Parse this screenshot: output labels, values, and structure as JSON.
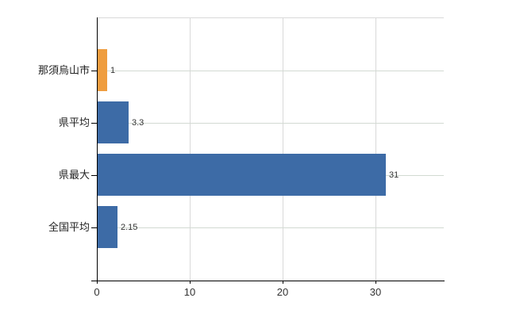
{
  "chart_data": {
    "type": "bar",
    "orientation": "horizontal",
    "title": "",
    "xlabel": "",
    "ylabel": "",
    "categories": [
      "那須烏山市",
      "県平均",
      "県最大",
      "全国平均"
    ],
    "values": [
      1,
      3.3,
      31,
      2.15
    ],
    "value_labels": [
      "1",
      "3.3",
      "31",
      "2.15"
    ],
    "bar_colors": [
      "#ef9d3f",
      "#3d6ba6",
      "#3d6ba6",
      "#3d6ba6"
    ],
    "xlim": [
      0,
      37.3
    ],
    "xticks": [
      0,
      10,
      20,
      30
    ],
    "xtick_labels": [
      "0",
      "10",
      "20",
      "30"
    ],
    "grid": true,
    "legend": false
  },
  "colors": {
    "axis": "#000000",
    "grid_vertical": "#d9d9d9",
    "grid_horizontal": "#d2dad2",
    "plot_border_top": "#d9d9d9",
    "text": "#333333",
    "background": "#ffffff"
  }
}
